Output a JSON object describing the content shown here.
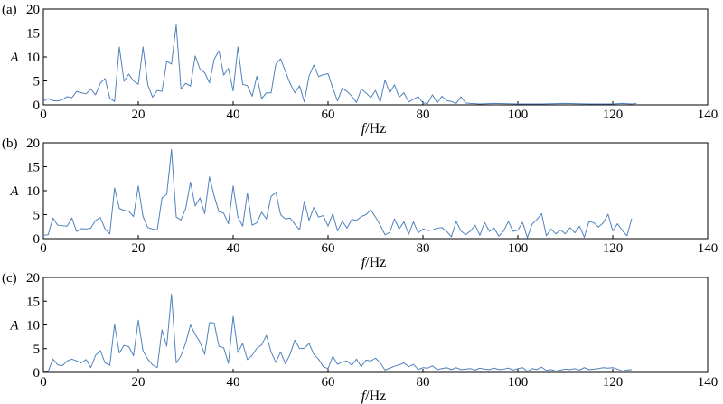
{
  "chart_data": [
    {
      "type": "line",
      "panel_label": "(a)",
      "xlabel_italic": "f",
      "xlabel_unit": "/Hz",
      "ylabel": "A",
      "xlim": [
        0,
        140
      ],
      "ylim": [
        0,
        20
      ],
      "x_ticks": [
        0,
        20,
        40,
        60,
        80,
        100,
        120,
        140
      ],
      "y_ticks": [
        0,
        5,
        10,
        15,
        20
      ],
      "grid": false,
      "line_color": "#4f81bd",
      "series": [
        {
          "x": [
            0,
            1,
            2,
            3,
            4,
            5,
            6,
            7,
            8,
            9,
            10,
            11,
            12,
            13,
            14,
            15,
            16,
            17,
            18,
            19,
            20,
            21,
            22,
            23,
            24,
            25,
            26,
            27,
            28,
            29,
            30,
            31,
            32,
            33,
            34,
            35,
            36,
            37,
            38,
            39,
            40,
            41,
            42,
            43,
            44,
            45,
            46,
            47,
            48,
            49,
            50,
            51,
            52,
            53,
            54,
            55,
            56,
            57,
            58,
            59,
            60,
            61,
            62,
            63,
            64,
            65,
            66,
            67,
            68,
            69,
            70,
            71,
            72,
            73,
            74,
            75,
            76,
            77,
            78,
            79,
            80,
            81,
            82,
            83,
            84,
            85,
            86,
            87,
            88,
            89,
            90,
            92,
            95,
            100,
            105,
            110,
            115,
            120,
            122,
            124,
            125
          ],
          "y": [
            0.8,
            1.3,
            0.9,
            0.8,
            1.1,
            1.7,
            1.5,
            2.8,
            2.5,
            2.3,
            3.3,
            2.1,
            4.5,
            5.5,
            1.4,
            0.7,
            12.1,
            4.9,
            6.4,
            5.0,
            4.3,
            12.1,
            4.2,
            1.6,
            3.0,
            2.8,
            9.1,
            8.5,
            16.7,
            3.3,
            4.5,
            3.9,
            10.2,
            7.5,
            6.7,
            4.6,
            9.5,
            11.3,
            6.2,
            7.6,
            2.9,
            12.1,
            4.3,
            4.0,
            1.8,
            6.0,
            1.3,
            2.5,
            2.5,
            8.5,
            9.6,
            7.0,
            4.5,
            2.5,
            4.0,
            0.6,
            6.0,
            8.3,
            5.9,
            6.3,
            6.5,
            3.5,
            0.8,
            3.5,
            2.8,
            1.8,
            0.5,
            3.3,
            2.5,
            1.5,
            3.0,
            0.6,
            5.2,
            2.5,
            4.2,
            1.6,
            2.5,
            0.6,
            1.2,
            1.7,
            0.4,
            0.3,
            2.1,
            0.4,
            1.8,
            0.9,
            0.7,
            0.3,
            1.7,
            0.4,
            0.3,
            0.2,
            0.3,
            0.2,
            0.2,
            0.3,
            0.2,
            0.2,
            0.3,
            0.2,
            0.3
          ]
        }
      ]
    },
    {
      "type": "line",
      "panel_label": "(b)",
      "xlabel_italic": "f",
      "xlabel_unit": "/Hz",
      "ylabel": "A",
      "xlim": [
        0,
        140
      ],
      "ylim": [
        0,
        20
      ],
      "x_ticks": [
        0,
        20,
        40,
        60,
        80,
        100,
        120,
        140
      ],
      "y_ticks": [
        0,
        5,
        10,
        15,
        20
      ],
      "grid": false,
      "line_color": "#4f81bd",
      "series": [
        {
          "x": [
            0,
            1,
            2,
            3,
            4,
            5,
            6,
            7,
            8,
            9,
            10,
            11,
            12,
            13,
            14,
            15,
            16,
            17,
            18,
            19,
            20,
            21,
            22,
            23,
            24,
            25,
            26,
            27,
            28,
            29,
            30,
            31,
            32,
            33,
            34,
            35,
            36,
            37,
            38,
            39,
            40,
            41,
            42,
            43,
            44,
            45,
            46,
            47,
            48,
            49,
            50,
            51,
            52,
            53,
            54,
            55,
            56,
            57,
            58,
            59,
            60,
            61,
            62,
            63,
            64,
            65,
            66,
            67,
            68,
            69,
            70,
            71,
            72,
            73,
            74,
            75,
            76,
            77,
            78,
            79,
            80,
            81,
            82,
            83,
            84,
            85,
            86,
            87,
            88,
            89,
            90,
            91,
            92,
            93,
            94,
            95,
            96,
            97,
            98,
            99,
            100,
            101,
            102,
            103,
            104,
            105,
            106,
            107,
            108,
            109,
            110,
            111,
            112,
            113,
            114,
            115,
            116,
            117,
            118,
            119,
            120,
            121,
            122,
            123,
            124
          ],
          "y": [
            0.7,
            0.8,
            4.3,
            2.8,
            2.7,
            2.6,
            4.3,
            1.5,
            2.1,
            2.0,
            2.2,
            3.8,
            4.4,
            2.0,
            1.0,
            10.6,
            6.3,
            5.9,
            5.7,
            4.6,
            11.0,
            4.6,
            2.3,
            2.0,
            1.8,
            8.5,
            9.2,
            18.6,
            4.5,
            3.9,
            6.3,
            11.8,
            6.8,
            8.5,
            5.2,
            12.9,
            8.9,
            5.6,
            5.3,
            3.1,
            11.0,
            4.5,
            2.6,
            9.5,
            2.8,
            3.3,
            5.5,
            4.1,
            8.8,
            9.7,
            5.0,
            4.1,
            4.3,
            3.0,
            1.8,
            7.8,
            3.8,
            6.5,
            4.5,
            4.8,
            2.6,
            5.2,
            1.6,
            3.6,
            2.2,
            4.0,
            3.8,
            4.6,
            5.0,
            6.0,
            4.5,
            2.8,
            0.8,
            1.3,
            4.1,
            2.0,
            3.5,
            0.9,
            3.5,
            1.2,
            2.0,
            1.7,
            1.8,
            2.2,
            2.3,
            1.5,
            0.4,
            3.6,
            1.6,
            0.8,
            1.6,
            2.8,
            0.7,
            3.4,
            1.5,
            2.2,
            0.5,
            1.6,
            3.6,
            1.5,
            1.8,
            3.4,
            0.2,
            3.0,
            4.0,
            5.2,
            0.6,
            2.0,
            1.0,
            1.8,
            1.0,
            2.3,
            1.2,
            2.6,
            0.3,
            3.6,
            3.3,
            2.4,
            3.3,
            5.1,
            1.6,
            3.1,
            1.7,
            0.6,
            4.2
          ]
        }
      ]
    },
    {
      "type": "line",
      "panel_label": "(c)",
      "xlabel_italic": "f",
      "xlabel_unit": "/Hz",
      "ylabel": "A",
      "xlim": [
        0,
        140
      ],
      "ylim": [
        0,
        20
      ],
      "x_ticks": [
        0,
        20,
        40,
        60,
        80,
        100,
        120,
        140
      ],
      "y_ticks": [
        0,
        5,
        10,
        15,
        20
      ],
      "grid": false,
      "line_color": "#4f81bd",
      "series": [
        {
          "x": [
            0,
            1,
            2,
            3,
            4,
            5,
            6,
            7,
            8,
            9,
            10,
            11,
            12,
            13,
            14,
            15,
            16,
            17,
            18,
            19,
            20,
            21,
            22,
            23,
            24,
            25,
            26,
            27,
            28,
            29,
            30,
            31,
            32,
            33,
            34,
            35,
            36,
            37,
            38,
            39,
            40,
            41,
            42,
            43,
            44,
            45,
            46,
            47,
            48,
            49,
            50,
            51,
            52,
            53,
            54,
            55,
            56,
            57,
            58,
            59,
            60,
            61,
            62,
            63,
            64,
            65,
            66,
            67,
            68,
            69,
            70,
            71,
            72,
            73,
            74,
            75,
            76,
            77,
            78,
            79,
            80,
            81,
            82,
            83,
            84,
            85,
            86,
            87,
            88,
            89,
            90,
            91,
            92,
            93,
            94,
            95,
            96,
            97,
            98,
            99,
            100,
            101,
            102,
            103,
            104,
            105,
            106,
            107,
            108,
            109,
            110,
            111,
            112,
            113,
            114,
            115,
            116,
            117,
            118,
            119,
            120,
            121,
            122,
            123,
            124
          ],
          "y": [
            0.2,
            0.2,
            2.8,
            1.6,
            1.4,
            2.4,
            2.8,
            2.4,
            2.0,
            2.7,
            1.0,
            3.6,
            4.6,
            2.0,
            1.5,
            10.1,
            4.1,
            5.7,
            5.4,
            3.5,
            11.0,
            4.5,
            2.8,
            1.6,
            1.0,
            9.0,
            5.5,
            16.5,
            2.0,
            3.5,
            6.2,
            10.0,
            8.0,
            6.4,
            3.8,
            10.5,
            10.4,
            5.5,
            5.2,
            1.9,
            11.8,
            4.2,
            6.1,
            2.7,
            3.6,
            5.1,
            5.8,
            7.8,
            4.3,
            2.1,
            4.3,
            1.8,
            3.8,
            6.8,
            5.0,
            5.1,
            6.1,
            3.8,
            2.8,
            1.2,
            0.8,
            3.4,
            1.7,
            2.2,
            2.4,
            1.5,
            2.8,
            1.2,
            2.6,
            2.4,
            3.0,
            2.0,
            0.5,
            0.9,
            1.3,
            1.6,
            2.0,
            1.2,
            1.7,
            0.6,
            1.0,
            0.9,
            1.4,
            0.6,
            0.8,
            1.0,
            0.6,
            1.0,
            0.6,
            0.7,
            0.8,
            0.5,
            0.9,
            0.7,
            0.6,
            0.9,
            0.6,
            0.7,
            0.9,
            0.5,
            0.8,
            1.0,
            0.2,
            0.8,
            0.6,
            1.1,
            0.4,
            0.6,
            0.3,
            0.5,
            0.7,
            0.6,
            0.8,
            0.5,
            1.0,
            0.6,
            0.7,
            0.8,
            1.0,
            0.9,
            1.0,
            0.7,
            0.3,
            0.5,
            0.6
          ]
        }
      ]
    }
  ]
}
